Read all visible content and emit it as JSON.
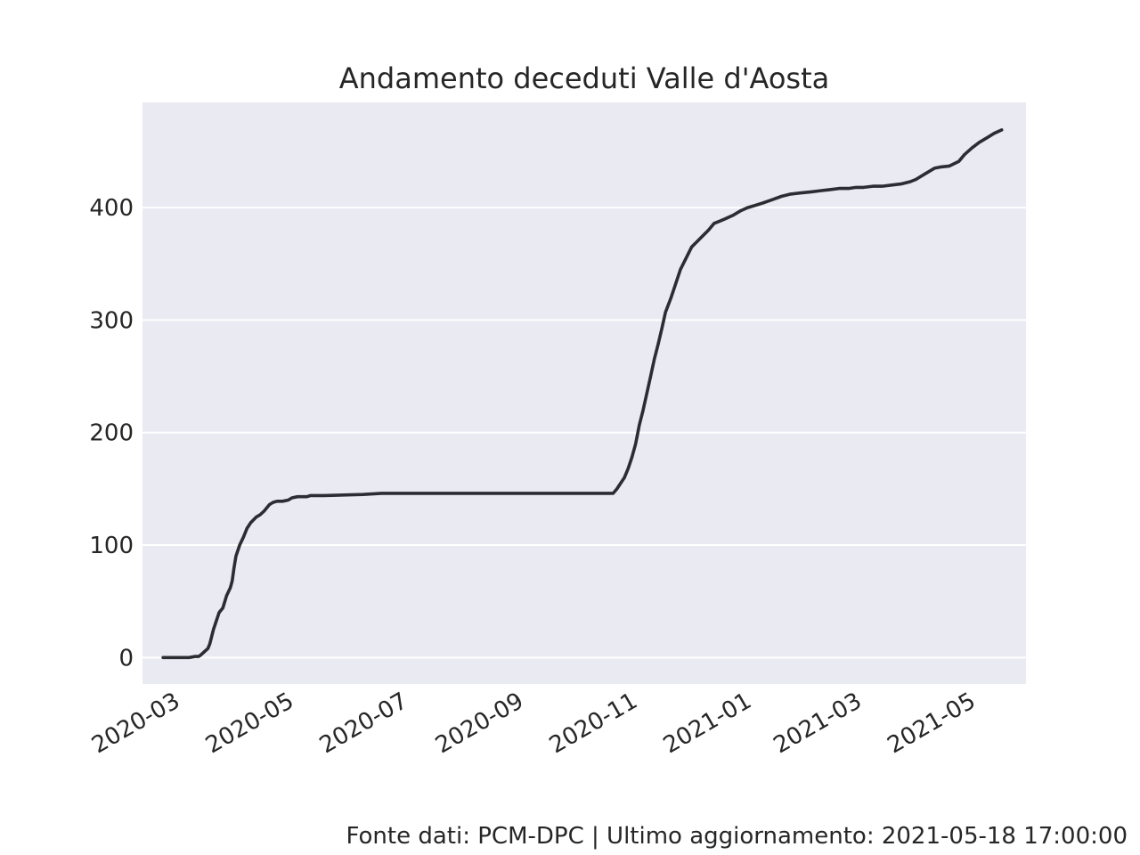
{
  "footer_text": "Fonte dati: PCM-DPC | Ultimo aggiornamento: 2021-05-18 17:00:00",
  "chart_data": {
    "type": "line",
    "title": "Andamento deceduti Valle d'Aosta",
    "xlabel": "",
    "ylabel": "",
    "x_axis_type": "date",
    "xlim": [
      "2020-02-13",
      "2021-05-31"
    ],
    "ylim": [
      -23.5,
      493.5
    ],
    "x_ticks": [
      "2020-03",
      "2020-05",
      "2020-07",
      "2020-09",
      "2020-11",
      "2021-01",
      "2021-03",
      "2021-05"
    ],
    "y_ticks": [
      0,
      100,
      200,
      300,
      400
    ],
    "grid": true,
    "legend": "none",
    "colors": {
      "background": "#eaeaf2",
      "grid": "#ffffff",
      "line": "#2b2d33",
      "text": "#262626"
    },
    "series": [
      {
        "x": [
          "2020-02-24",
          "2020-03-09",
          "2020-03-12",
          "2020-03-14",
          "2020-03-15",
          "2020-03-17",
          "2020-03-19",
          "2020-03-20",
          "2020-03-22",
          "2020-03-23",
          "2020-03-25",
          "2020-03-27",
          "2020-03-29",
          "2020-03-31",
          "2020-04-01",
          "2020-04-02",
          "2020-04-03",
          "2020-04-05",
          "2020-04-07",
          "2020-04-09",
          "2020-04-11",
          "2020-04-14",
          "2020-04-16",
          "2020-04-18",
          "2020-04-21",
          "2020-04-23",
          "2020-04-25",
          "2020-04-28",
          "2020-05-01",
          "2020-05-03",
          "2020-05-06",
          "2020-05-11",
          "2020-05-13",
          "2020-05-16",
          "2020-05-20",
          "2020-06-10",
          "2020-06-20",
          "2020-06-21",
          "2020-10-22",
          "2020-10-24",
          "2020-10-26",
          "2020-10-28",
          "2020-10-30",
          "2020-11-01",
          "2020-11-03",
          "2020-11-05",
          "2020-11-07",
          "2020-11-09",
          "2020-11-11",
          "2020-11-13",
          "2020-11-15",
          "2020-11-17",
          "2020-11-19",
          "2020-11-22",
          "2020-11-25",
          "2020-11-27",
          "2020-11-30",
          "2020-12-03",
          "2020-12-06",
          "2020-12-09",
          "2020-12-12",
          "2020-12-15",
          "2020-12-18",
          "2020-12-21",
          "2020-12-25",
          "2020-12-29",
          "2021-01-02",
          "2021-01-06",
          "2021-01-10",
          "2021-01-15",
          "2021-01-20",
          "2021-01-25",
          "2021-01-30",
          "2021-02-05",
          "2021-02-10",
          "2021-02-15",
          "2021-02-20",
          "2021-02-25",
          "2021-03-01",
          "2021-03-05",
          "2021-03-10",
          "2021-03-15",
          "2021-03-20",
          "2021-03-25",
          "2021-03-30",
          "2021-04-02",
          "2021-04-07",
          "2021-04-12",
          "2021-04-15",
          "2021-04-20",
          "2021-04-25",
          "2021-04-28",
          "2021-05-02",
          "2021-05-06",
          "2021-05-10",
          "2021-05-14",
          "2021-05-18"
        ],
        "y": [
          0,
          0,
          1,
          1,
          2,
          5,
          8,
          12,
          25,
          30,
          40,
          44,
          55,
          62,
          68,
          80,
          90,
          100,
          107,
          115,
          120,
          125,
          127,
          130,
          136,
          138,
          139,
          139,
          140,
          142,
          143,
          143,
          144,
          144,
          144,
          145,
          146,
          146,
          146,
          150,
          155,
          160,
          168,
          178,
          190,
          207,
          220,
          235,
          250,
          265,
          278,
          292,
          307,
          320,
          335,
          345,
          355,
          365,
          370,
          375,
          380,
          386,
          388,
          390,
          393,
          397,
          400,
          402,
          404,
          407,
          410,
          412,
          413,
          414,
          415,
          416,
          417,
          417,
          418,
          418,
          419,
          419,
          420,
          421,
          423,
          425,
          430,
          435,
          436,
          437,
          441,
          447,
          453,
          458,
          462,
          466,
          469
        ]
      }
    ]
  }
}
